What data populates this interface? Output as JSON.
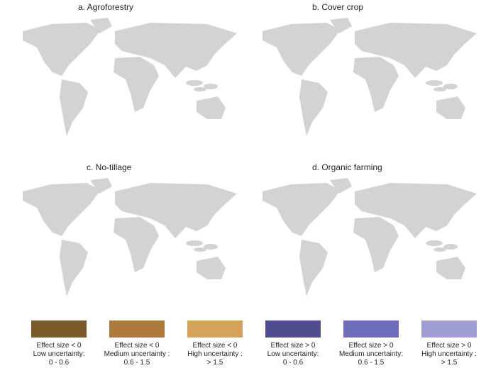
{
  "panels": [
    {
      "title": "a. Agroforestry"
    },
    {
      "title": "b. Cover crop"
    },
    {
      "title": "c. No-tillage"
    },
    {
      "title": "d. Organic farming"
    }
  ],
  "legend": [
    {
      "color": "#7b5a2a",
      "lines": [
        "Effect size < 0",
        "Low uncertainty:",
        "0 - 0.6"
      ]
    },
    {
      "color": "#ae7a3c",
      "lines": [
        "Effect size < 0",
        "Medium uncertainty :",
        "0.6 - 1.5"
      ]
    },
    {
      "color": "#d4a35a",
      "lines": [
        "Effect size < 0",
        "High uncertainty :",
        "> 1.5"
      ]
    },
    {
      "color": "#4f4d8f",
      "lines": [
        "Effect size > 0",
        "Low uncertainty:",
        "0 - 0.6"
      ]
    },
    {
      "color": "#6f6dbb",
      "lines": [
        "Effect size > 0",
        "Medium uncertainty:",
        "0.6 - 1.5"
      ]
    },
    {
      "color": "#9e9ed4",
      "lines": [
        "Effect size > 0",
        "High uncertainty :",
        "> 1.5"
      ]
    }
  ]
}
